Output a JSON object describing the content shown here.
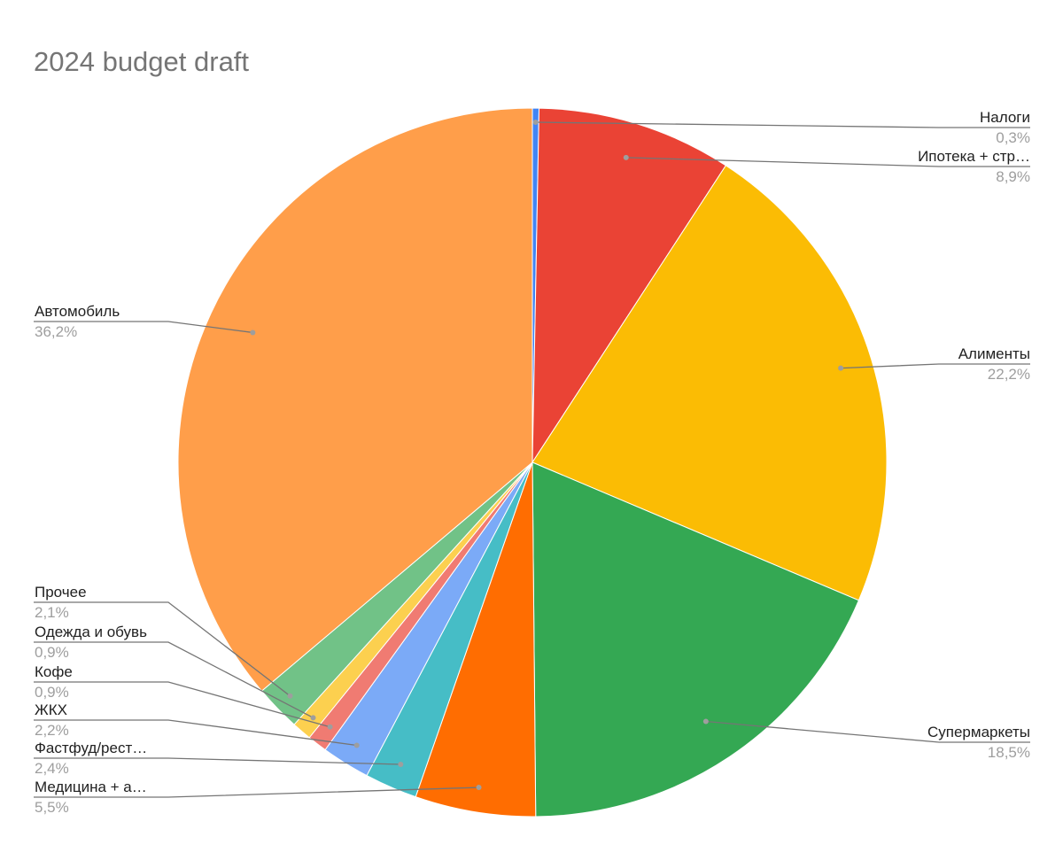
{
  "chart_data": {
    "type": "pie",
    "title": "2024 budget draft",
    "slices": [
      {
        "label": "Налоги",
        "percent_label": "0,3%",
        "value": 0.3,
        "color": "#4285F4"
      },
      {
        "label": "Ипотека + стр…",
        "percent_label": "8,9%",
        "value": 8.9,
        "color": "#EA4335"
      },
      {
        "label": "Алименты",
        "percent_label": "22,2%",
        "value": 22.2,
        "color": "#FBBC04"
      },
      {
        "label": "Супермаркеты",
        "percent_label": "18,5%",
        "value": 18.5,
        "color": "#34A853"
      },
      {
        "label": "Медицина + а…",
        "percent_label": "5,5%",
        "value": 5.5,
        "color": "#FF6D01"
      },
      {
        "label": "Фастфуд/рест…",
        "percent_label": "2,4%",
        "value": 2.4,
        "color": "#46BDC6"
      },
      {
        "label": "ЖКХ",
        "percent_label": "2,2%",
        "value": 2.2,
        "color": "#7BAAF7"
      },
      {
        "label": "Кофе",
        "percent_label": "0,9%",
        "value": 0.9,
        "color": "#F07B72"
      },
      {
        "label": "Одежда и обувь",
        "percent_label": "0,9%",
        "value": 0.9,
        "color": "#FCD04F"
      },
      {
        "label": "Прочее",
        "percent_label": "2,1%",
        "value": 2.1,
        "color": "#71C287"
      },
      {
        "label": "Автомобиль",
        "percent_label": "36,2%",
        "value": 36.2,
        "color": "#FF9E4A"
      }
    ],
    "start_angle": "12 o'clock",
    "direction": "clockwise",
    "legend": "none",
    "data_labels": "outside with leader lines"
  }
}
